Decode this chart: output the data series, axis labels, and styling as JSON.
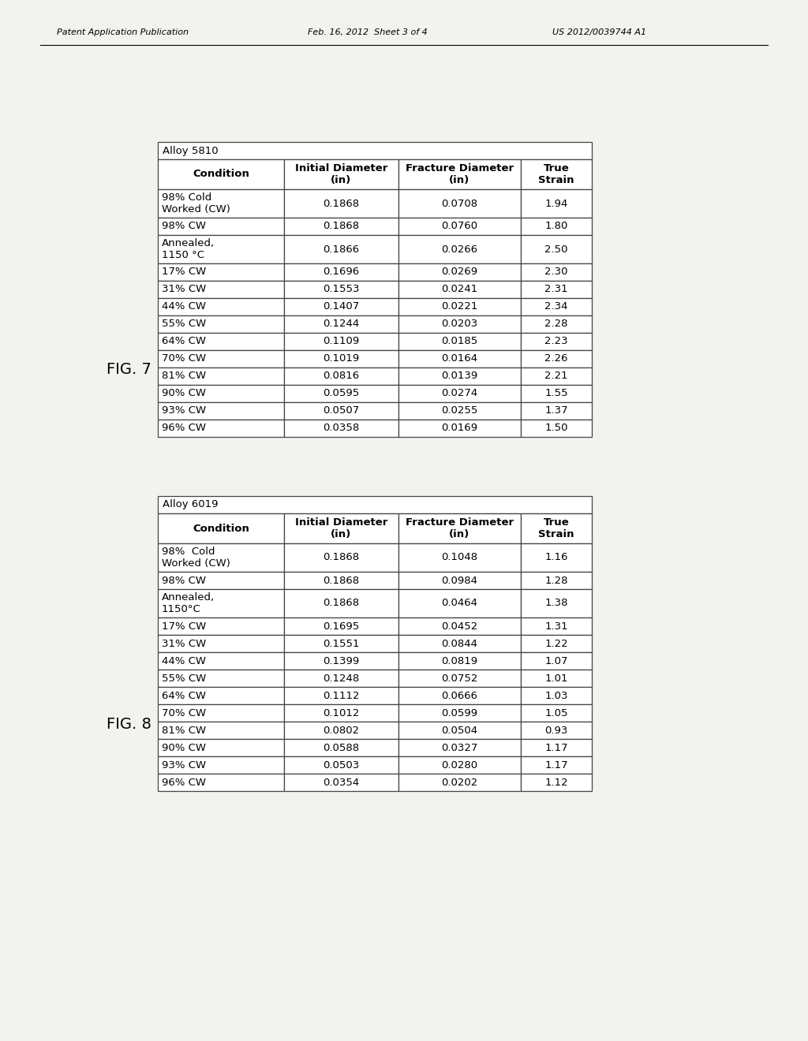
{
  "header_left": "Patent Application Publication",
  "header_mid": "Feb. 16, 2012  Sheet 3 of 4",
  "header_right": "US 2012/0039744 A1",
  "fig7_label": "FIG. 7",
  "fig8_label": "FIG. 8",
  "table1_title": "Alloy 5810",
  "table1_headers": [
    "Condition",
    "Initial Diameter\n(in)",
    "Fracture Diameter\n(in)",
    "True\nStrain"
  ],
  "table1_rows": [
    [
      "98% Cold\nWorked (CW)",
      "0.1868",
      "0.0708",
      "1.94"
    ],
    [
      "98% CW",
      "0.1868",
      "0.0760",
      "1.80"
    ],
    [
      "Annealed,\n1150 °C",
      "0.1866",
      "0.0266",
      "2.50"
    ],
    [
      "17% CW",
      "0.1696",
      "0.0269",
      "2.30"
    ],
    [
      "31% CW",
      "0.1553",
      "0.0241",
      "2.31"
    ],
    [
      "44% CW",
      "0.1407",
      "0.0221",
      "2.34"
    ],
    [
      "55% CW",
      "0.1244",
      "0.0203",
      "2.28"
    ],
    [
      "64% CW",
      "0.1109",
      "0.0185",
      "2.23"
    ],
    [
      "70% CW",
      "0.1019",
      "0.0164",
      "2.26"
    ],
    [
      "81% CW",
      "0.0816",
      "0.0139",
      "2.21"
    ],
    [
      "90% CW",
      "0.0595",
      "0.0274",
      "1.55"
    ],
    [
      "93% CW",
      "0.0507",
      "0.0255",
      "1.37"
    ],
    [
      "96% CW",
      "0.0358",
      "0.0169",
      "1.50"
    ]
  ],
  "table2_title": "Alloy 6019",
  "table2_headers": [
    "Condition",
    "Initial Diameter\n(in)",
    "Fracture Diameter\n(in)",
    "True\nStrain"
  ],
  "table2_rows": [
    [
      "98%  Cold\nWorked (CW)",
      "0.1868",
      "0.1048",
      "1.16"
    ],
    [
      "98% CW",
      "0.1868",
      "0.0984",
      "1.28"
    ],
    [
      "Annealed,\n1150°C",
      "0.1868",
      "0.0464",
      "1.38"
    ],
    [
      "17% CW",
      "0.1695",
      "0.0452",
      "1.31"
    ],
    [
      "31% CW",
      "0.1551",
      "0.0844",
      "1.22"
    ],
    [
      "44% CW",
      "0.1399",
      "0.0819",
      "1.07"
    ],
    [
      "55% CW",
      "0.1248",
      "0.0752",
      "1.01"
    ],
    [
      "64% CW",
      "0.1112",
      "0.0666",
      "1.03"
    ],
    [
      "70% CW",
      "0.1012",
      "0.0599",
      "1.05"
    ],
    [
      "81% CW",
      "0.0802",
      "0.0504",
      "0.93"
    ],
    [
      "90% CW",
      "0.0588",
      "0.0327",
      "1.17"
    ],
    [
      "93% CW",
      "0.0503",
      "0.0280",
      "1.17"
    ],
    [
      "96% CW",
      "0.0354",
      "0.0202",
      "1.12"
    ]
  ],
  "bg_color": "#f2f2ee",
  "table_bg": "#ffffff",
  "border_color": "#444444",
  "font_size": 9.5
}
